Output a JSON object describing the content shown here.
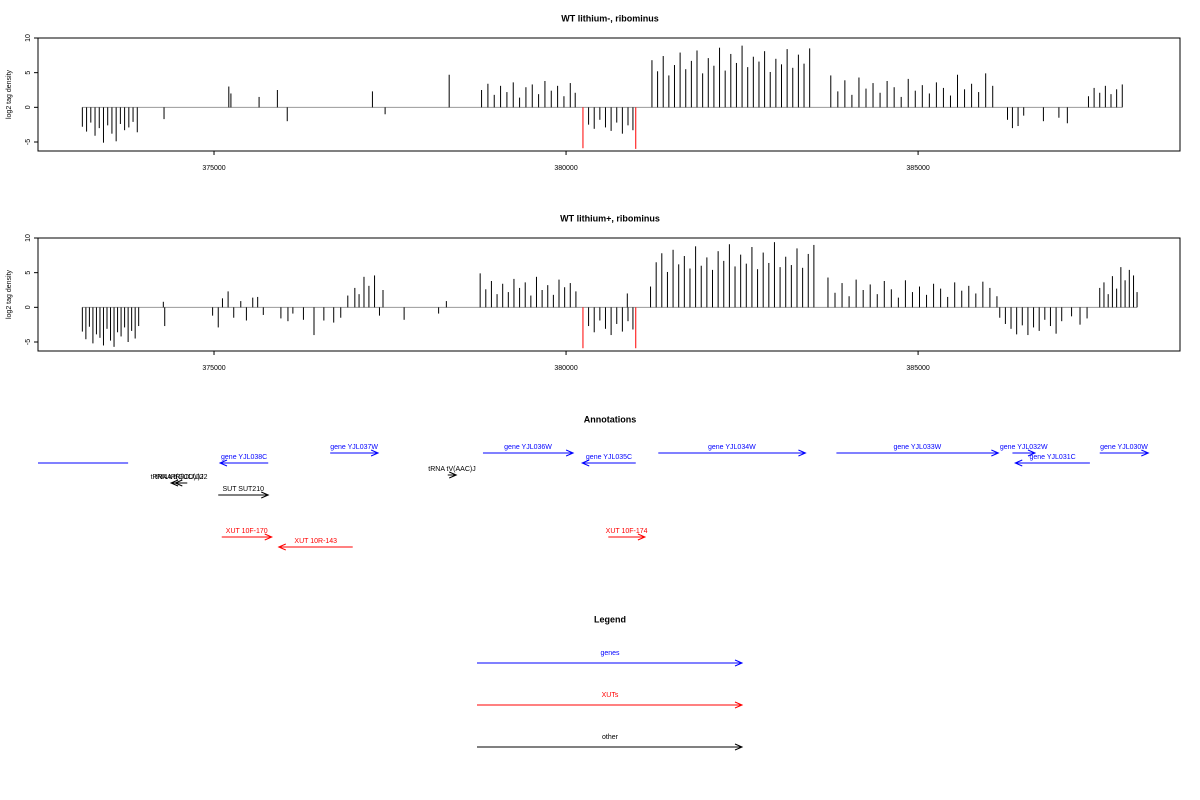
{
  "chart_data": [
    {
      "type": "spike",
      "title": "WT lithium-, ribominus",
      "ylabel": "log2 tag density",
      "xlim": [
        372500,
        388720
      ],
      "ylim": [
        -6.3,
        10
      ],
      "xticks": [
        375000,
        380000,
        385000
      ],
      "yticks": [
        -5,
        0,
        5,
        10
      ],
      "series": [
        {
          "color": "#000000",
          "x": [
            373130,
            373190,
            373250,
            373310,
            373370,
            373430,
            373490,
            373550,
            373610,
            373670,
            373730,
            373790,
            373850,
            373910,
            374290,
            375210,
            375240,
            375640,
            375900,
            376040,
            377250,
            377430,
            378340,
            378800,
            378890,
            378980,
            379070,
            379160,
            379250,
            379340,
            379430,
            379520,
            379610,
            379700,
            379790,
            379880,
            379970,
            380060,
            380130,
            380320,
            380400,
            380480,
            380560,
            380640,
            380720,
            380800,
            380880,
            380950,
            381220,
            381300,
            381380,
            381460,
            381540,
            381620,
            381700,
            381780,
            381860,
            381940,
            382020,
            382100,
            382180,
            382260,
            382340,
            382420,
            382500,
            382580,
            382660,
            382740,
            382820,
            382900,
            382980,
            383060,
            383140,
            383220,
            383300,
            383380,
            383460,
            383760,
            383860,
            383960,
            384060,
            384160,
            384260,
            384360,
            384460,
            384560,
            384660,
            384760,
            384860,
            384960,
            385060,
            385160,
            385260,
            385360,
            385460,
            385560,
            385660,
            385760,
            385860,
            385960,
            386060,
            386270,
            386340,
            386420,
            386500,
            386780,
            387000,
            387120,
            387420,
            387500,
            387580,
            387660,
            387740,
            387820,
            387900
          ],
          "values": [
            -2.8,
            -3.5,
            -2.2,
            -4.1,
            -3.0,
            -5.1,
            -2.6,
            -3.8,
            -4.9,
            -2.4,
            -3.3,
            -2.9,
            -2.1,
            -3.6,
            -1.7,
            3.0,
            2.0,
            1.5,
            2.5,
            -2.0,
            2.3,
            -1.0,
            4.7,
            2.5,
            3.4,
            1.8,
            3.1,
            2.2,
            3.6,
            1.4,
            2.9,
            3.3,
            1.9,
            3.8,
            2.4,
            3.1,
            1.6,
            3.5,
            2.1,
            -2.5,
            -3.1,
            -1.8,
            -2.9,
            -3.4,
            -2.2,
            -3.8,
            -2.6,
            -3.3,
            6.8,
            5.2,
            7.4,
            4.6,
            6.1,
            7.9,
            5.5,
            6.7,
            8.2,
            4.9,
            7.1,
            6.0,
            8.6,
            5.3,
            7.7,
            6.4,
            8.9,
            5.8,
            7.3,
            6.6,
            8.1,
            5.1,
            7.0,
            6.2,
            8.4,
            5.7,
            7.6,
            6.3,
            8.5,
            4.6,
            2.3,
            3.9,
            1.8,
            4.3,
            2.7,
            3.5,
            2.1,
            3.8,
            2.9,
            1.5,
            4.1,
            2.4,
            3.2,
            2.0,
            3.6,
            2.8,
            1.7,
            4.7,
            2.6,
            3.4,
            2.2,
            4.9,
            3.1,
            -1.8,
            -3.0,
            -2.7,
            -1.2,
            -2.0,
            -1.5,
            -2.3,
            1.6,
            2.8,
            2.1,
            3.1,
            1.9,
            2.6,
            3.3
          ]
        },
        {
          "color": "#ff0000",
          "x": [
            380240,
            380990
          ],
          "values": [
            -5.9,
            -6.0
          ]
        }
      ]
    },
    {
      "type": "spike",
      "title": "WT lithium+, ribominus",
      "ylabel": "log2 tag density",
      "xlim": [
        372500,
        388720
      ],
      "ylim": [
        -6.3,
        10
      ],
      "xticks": [
        375000,
        380000,
        385000
      ],
      "yticks": [
        -5,
        0,
        5,
        10
      ],
      "series": [
        {
          "color": "#000000",
          "x": [
            373130,
            373180,
            373230,
            373280,
            373330,
            373380,
            373430,
            373480,
            373530,
            373580,
            373630,
            373680,
            373730,
            373780,
            373830,
            373880,
            373930,
            374280,
            374300,
            374980,
            375060,
            375120,
            375200,
            375280,
            375380,
            375460,
            375550,
            375620,
            375700,
            375950,
            376050,
            376120,
            376270,
            376420,
            376560,
            376700,
            376800,
            376900,
            377000,
            377060,
            377130,
            377200,
            377280,
            377350,
            377400,
            377700,
            378190,
            378300,
            378780,
            378860,
            378940,
            379020,
            379100,
            379180,
            379260,
            379340,
            379420,
            379500,
            379580,
            379660,
            379740,
            379820,
            379900,
            379980,
            380060,
            380140,
            380320,
            380400,
            380480,
            380560,
            380640,
            380720,
            380800,
            380880,
            380950,
            380870,
            381200,
            381280,
            381360,
            381440,
            381520,
            381600,
            381680,
            381760,
            381840,
            381920,
            382000,
            382080,
            382160,
            382240,
            382320,
            382400,
            382480,
            382560,
            382640,
            382720,
            382800,
            382880,
            382960,
            383040,
            383120,
            383200,
            383280,
            383360,
            383440,
            383520,
            383720,
            383820,
            383920,
            384020,
            384120,
            384220,
            384320,
            384420,
            384520,
            384620,
            384720,
            384820,
            384920,
            385020,
            385120,
            385220,
            385320,
            385420,
            385520,
            385620,
            385720,
            385820,
            385920,
            386020,
            386120,
            386160,
            386240,
            386320,
            386400,
            386480,
            386560,
            386640,
            386720,
            386800,
            386880,
            386960,
            387040,
            387180,
            387300,
            387400,
            387580,
            387640,
            387700,
            387760,
            387820,
            387880,
            387940,
            388000,
            388060,
            388110
          ],
          "values": [
            -3.5,
            -4.6,
            -2.8,
            -5.2,
            -3.9,
            -4.4,
            -5.5,
            -3.1,
            -4.8,
            -5.7,
            -3.6,
            -4.2,
            -2.9,
            -5.0,
            -3.4,
            -4.5,
            -2.7,
            0.8,
            -2.7,
            -1.2,
            -2.9,
            1.3,
            2.3,
            -1.5,
            0.9,
            -1.9,
            1.4,
            1.5,
            -1.1,
            -1.6,
            -2.0,
            -0.9,
            -1.8,
            -4.0,
            -1.9,
            -2.2,
            -1.5,
            1.7,
            2.8,
            1.9,
            4.4,
            3.1,
            4.6,
            -1.2,
            2.5,
            -1.8,
            -0.9,
            0.9,
            4.9,
            2.6,
            3.8,
            1.9,
            3.4,
            2.2,
            4.1,
            2.8,
            3.6,
            1.7,
            4.4,
            2.5,
            3.2,
            1.8,
            4.0,
            2.9,
            3.5,
            2.3,
            -2.7,
            -3.6,
            -1.9,
            -3.1,
            -4.0,
            -2.4,
            -3.5,
            -2.0,
            -3.2,
            2.0,
            3.0,
            6.5,
            7.8,
            5.1,
            8.3,
            6.2,
            7.4,
            5.6,
            8.8,
            6.0,
            7.2,
            5.4,
            8.1,
            6.7,
            9.1,
            5.9,
            7.6,
            6.3,
            8.7,
            5.5,
            7.9,
            6.4,
            9.4,
            5.8,
            7.3,
            6.1,
            8.5,
            5.7,
            7.7,
            9.0,
            4.3,
            2.1,
            3.5,
            1.6,
            4.0,
            2.5,
            3.3,
            1.9,
            3.8,
            2.6,
            1.4,
            3.9,
            2.2,
            3.0,
            1.8,
            3.4,
            2.7,
            1.5,
            3.6,
            2.4,
            3.1,
            2.0,
            3.7,
            2.8,
            1.6,
            -1.5,
            -2.4,
            -3.1,
            -3.9,
            -2.6,
            -4.0,
            -2.9,
            -3.4,
            -1.8,
            -2.7,
            -3.8,
            -2.0,
            -1.3,
            -2.5,
            -1.6,
            2.8,
            3.6,
            1.9,
            4.5,
            2.7,
            5.8,
            3.9,
            5.4,
            4.6,
            2.2
          ]
        },
        {
          "color": "#ff0000",
          "x": [
            380240,
            380990
          ],
          "values": [
            -5.9,
            -5.9
          ]
        }
      ]
    },
    {
      "type": "annotation",
      "title": "Annotations",
      "xlim": [
        372500,
        388720
      ],
      "items": [
        {
          "label": null,
          "start": 372500,
          "end": 373780,
          "strand": null,
          "color": "#0000ff"
        },
        {
          "label": "gene YJL038C",
          "start": 375085,
          "end": 375770,
          "strand": "-",
          "color": "#0000ff"
        },
        {
          "label": "gene YJL037W",
          "start": 376650,
          "end": 377330,
          "strand": "+",
          "color": "#0000ff"
        },
        {
          "label": "gene YJL036W",
          "start": 378820,
          "end": 380100,
          "strand": "+",
          "color": "#0000ff"
        },
        {
          "label": "gene YJL035C",
          "start": 380230,
          "end": 380990,
          "strand": "-",
          "color": "#0000ff"
        },
        {
          "label": "gene YJL034W",
          "start": 381310,
          "end": 383400,
          "strand": "+",
          "color": "#0000ff"
        },
        {
          "label": "gene YJL033W",
          "start": 383840,
          "end": 386140,
          "strand": "+",
          "color": "#0000ff"
        },
        {
          "label": "gene YJL032W",
          "start": 386340,
          "end": 386660,
          "strand": "+",
          "color": "#0000ff"
        },
        {
          "label": "gene YJL031C",
          "start": 386380,
          "end": 387440,
          "strand": "-",
          "color": "#0000ff"
        },
        {
          "label": "gene YJL030W",
          "start": 387580,
          "end": 388270,
          "strand": "+",
          "color": "#0000ff"
        },
        {
          "label": "tRNA tR(GCU)J2",
          "start": 374390,
          "end": 374560,
          "strand": "-",
          "color": "#000000"
        },
        {
          "label": "tRNA tR(UCU)J2",
          "start": 374450,
          "end": 374620,
          "strand": "-",
          "color": "#000000"
        },
        {
          "label": "SUT SUT210",
          "start": 375060,
          "end": 375770,
          "strand": "+",
          "color": "#000000"
        },
        {
          "label": "tRNA tV(AAC)J",
          "start": 378320,
          "end": 378440,
          "strand": "+",
          "color": "#000000"
        },
        {
          "label": "XUT 10F-170",
          "start": 375110,
          "end": 375820,
          "strand": "+",
          "color": "#ff0000"
        },
        {
          "label": "XUT 10R-143",
          "start": 375920,
          "end": 376970,
          "strand": "-",
          "color": "#ff0000"
        },
        {
          "label": "XUT 10F-174",
          "start": 380600,
          "end": 381120,
          "strand": "+",
          "color": "#ff0000"
        }
      ],
      "legend": {
        "title": "Legend",
        "items": [
          {
            "name": "genes",
            "color": "#0000ff"
          },
          {
            "name": "XUTs",
            "color": "#ff0000"
          },
          {
            "name": "other",
            "color": "#000000"
          }
        ]
      }
    }
  ]
}
